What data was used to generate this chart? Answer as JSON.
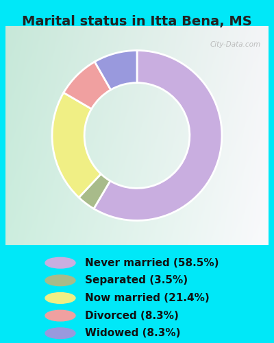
{
  "title": "Marital status in Itta Bena, MS",
  "slices": [
    {
      "label": "Never married (58.5%)",
      "value": 58.5,
      "color": "#c9aee0"
    },
    {
      "label": "Separated (3.5%)",
      "value": 3.5,
      "color": "#a8bb8a"
    },
    {
      "label": "Now married (21.4%)",
      "value": 21.4,
      "color": "#f0ef85"
    },
    {
      "label": "Divorced (8.3%)",
      "value": 8.3,
      "color": "#f0a0a0"
    },
    {
      "label": "Widowed (8.3%)",
      "value": 8.3,
      "color": "#9999dd"
    }
  ],
  "bg_cyan": "#00e8f8",
  "chart_bg_colors": [
    "#c8eedd",
    "#d8eecc",
    "#e8f4e0",
    "#f0f8f0"
  ],
  "title_fontsize": 14,
  "legend_fontsize": 11,
  "watermark": "City-Data.com",
  "donut_width": 0.38,
  "title_color": "#222222",
  "legend_text_color": "#111111"
}
